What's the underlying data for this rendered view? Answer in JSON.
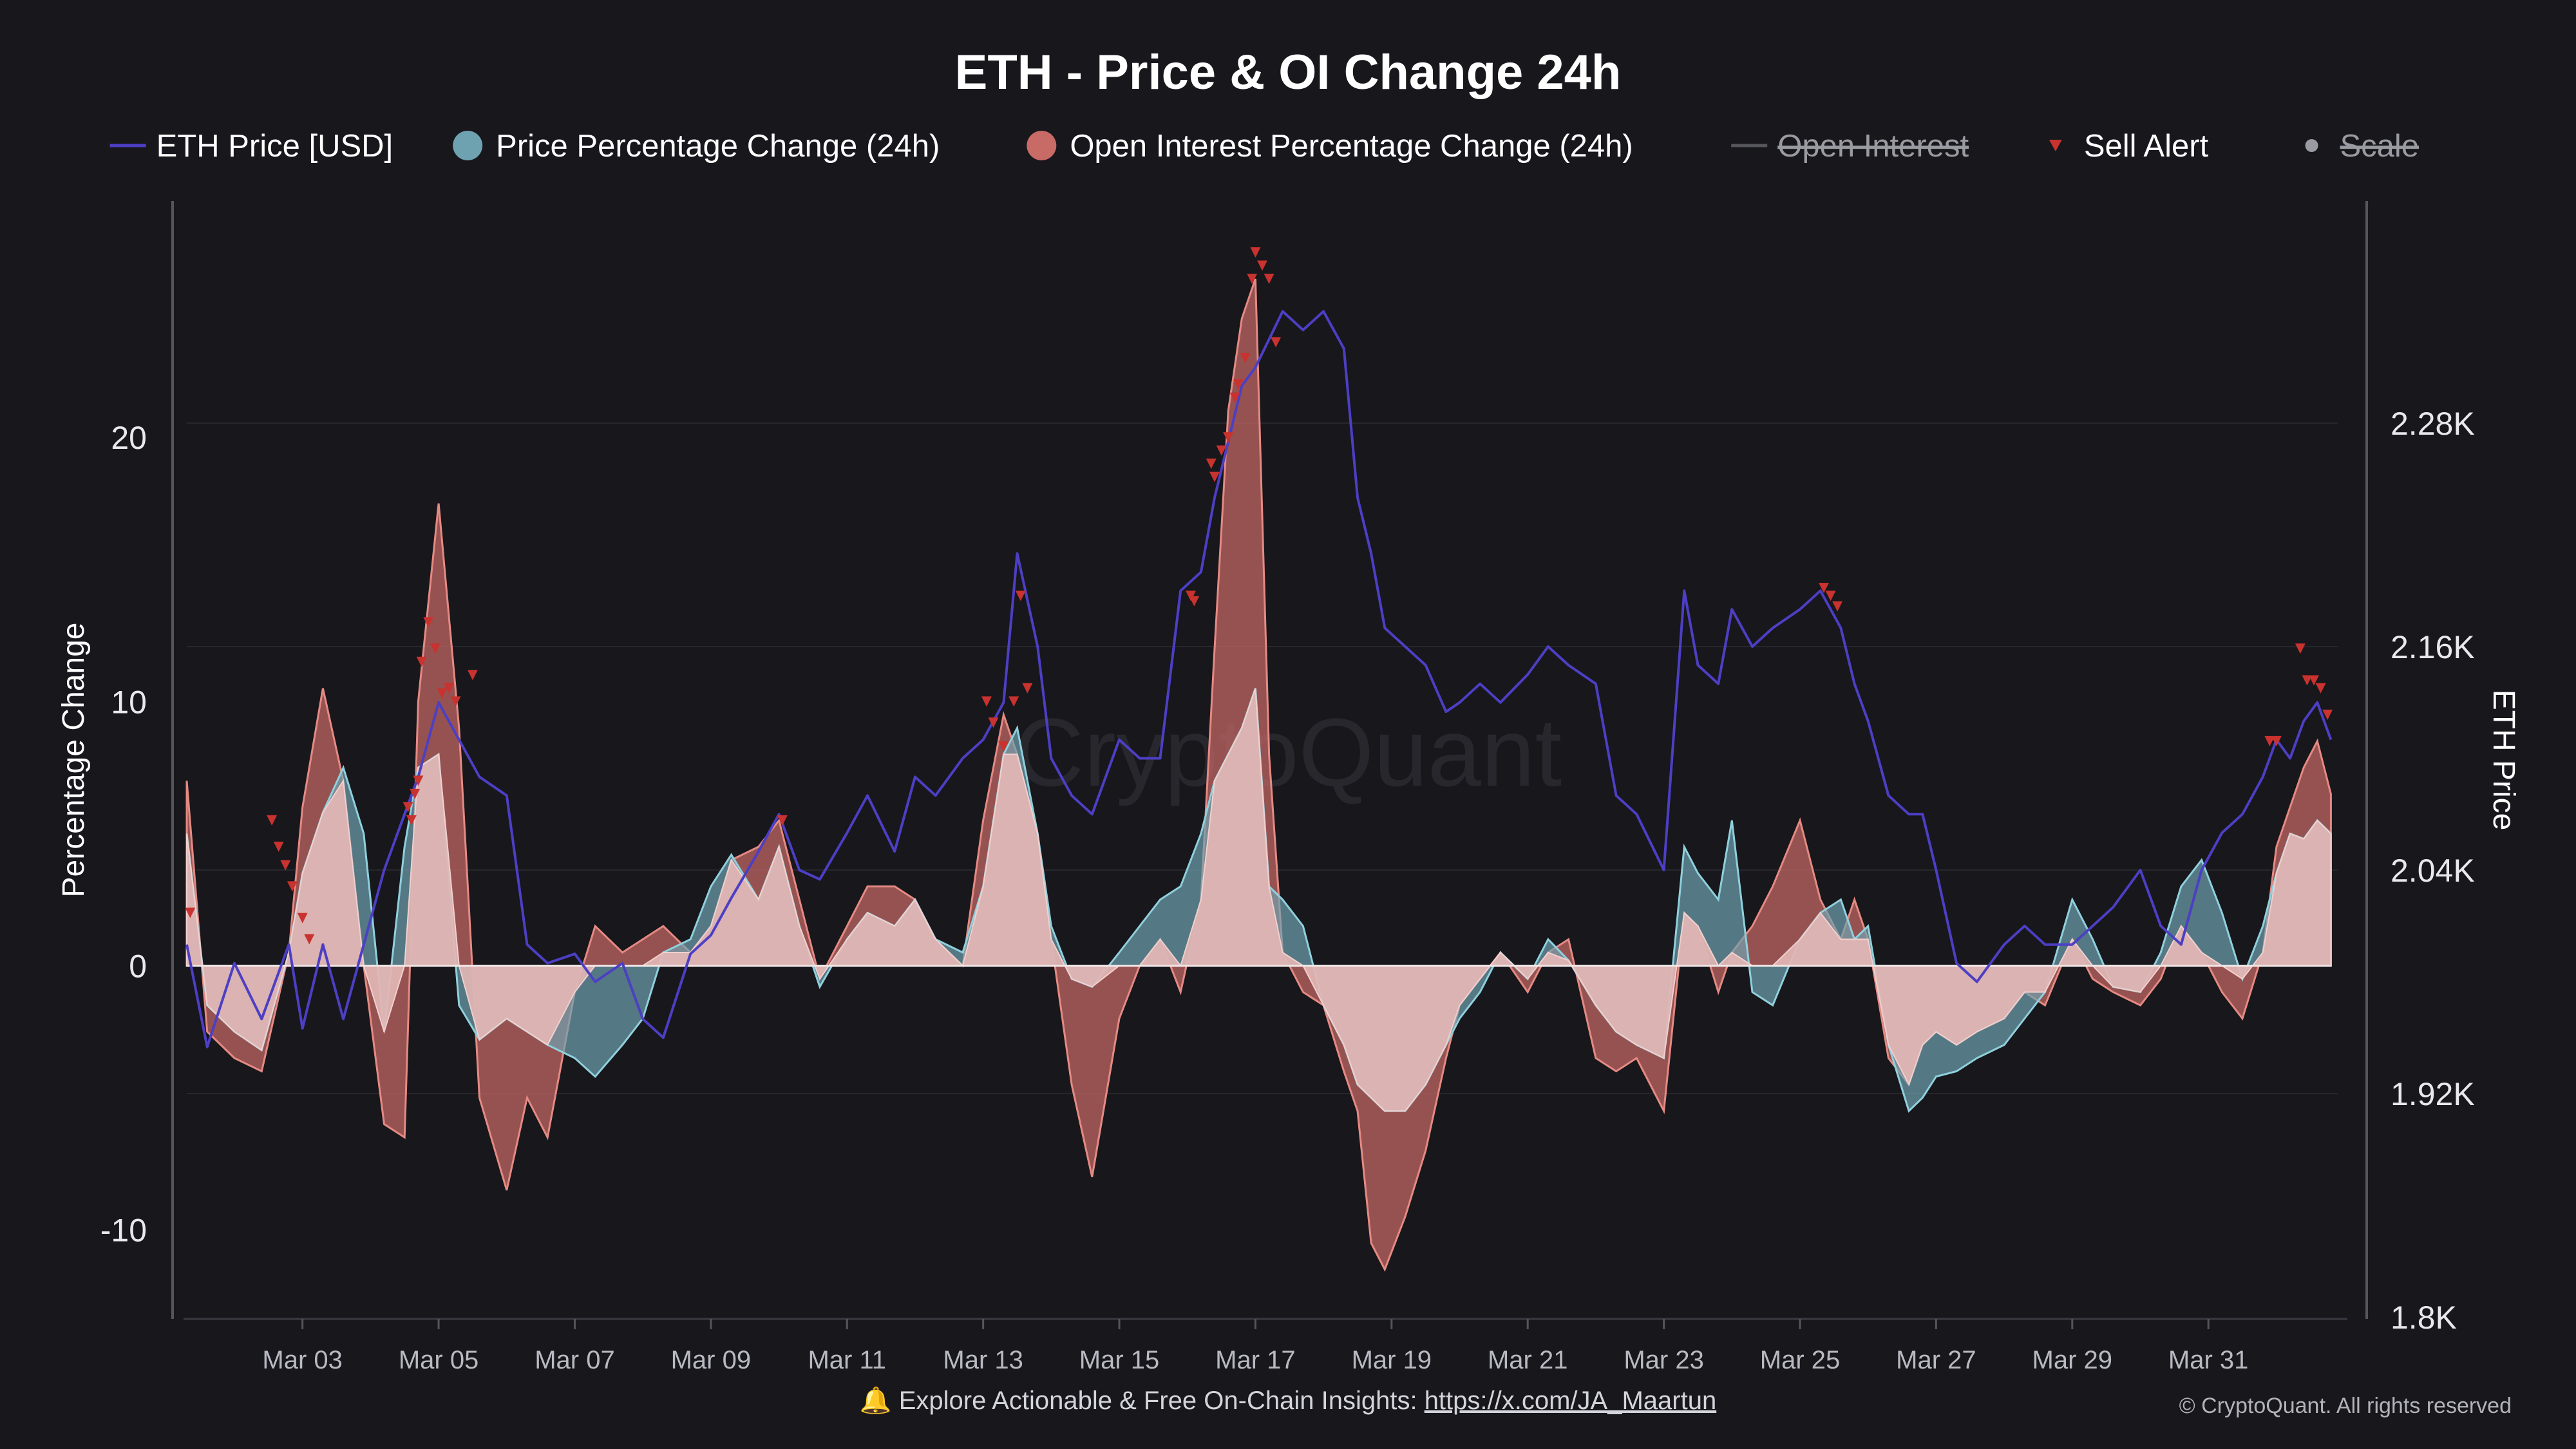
{
  "chart_data": {
    "type": "area",
    "title": "ETH - Price & OI Change 24h",
    "ylabel_left": "Percentage Change",
    "ylabel_right": "ETH Price",
    "ylim_left": [
      -13.3,
      29
    ],
    "ylim_right": [
      1800,
      2400
    ],
    "left_ticks": [
      {
        "value": 20,
        "label": "20"
      },
      {
        "value": 10,
        "label": "10"
      },
      {
        "value": 0,
        "label": "0"
      },
      {
        "value": -10,
        "label": "-10"
      }
    ],
    "right_ticks": [
      {
        "value": 2280,
        "label": "2.28K"
      },
      {
        "value": 2160,
        "label": "2.16K"
      },
      {
        "value": 2040,
        "label": "2.04K"
      },
      {
        "value": 1920,
        "label": "1.92K"
      },
      {
        "value": 1800,
        "label": "1.8K"
      }
    ],
    "x_range": [
      1.3,
      32.9
    ],
    "x_ticks": [
      {
        "value": 3,
        "label": "Mar 03"
      },
      {
        "value": 5,
        "label": "Mar 05"
      },
      {
        "value": 7,
        "label": "Mar 07"
      },
      {
        "value": 9,
        "label": "Mar 09"
      },
      {
        "value": 11,
        "label": "Mar 11"
      },
      {
        "value": 13,
        "label": "Mar 13"
      },
      {
        "value": 15,
        "label": "Mar 15"
      },
      {
        "value": 17,
        "label": "Mar 17"
      },
      {
        "value": 19,
        "label": "Mar 19"
      },
      {
        "value": 21,
        "label": "Mar 21"
      },
      {
        "value": 23,
        "label": "Mar 23"
      },
      {
        "value": 25,
        "label": "Mar 25"
      },
      {
        "value": 27,
        "label": "Mar 27"
      },
      {
        "value": 29,
        "label": "Mar 29"
      },
      {
        "value": 31,
        "label": "Mar 31"
      }
    ],
    "grid": true,
    "legend_position": "top",
    "legend": [
      {
        "key": "price",
        "label": "ETH Price [USD]",
        "symbol": "line",
        "color": "#4d3fc4",
        "disabled": false
      },
      {
        "key": "pct_price",
        "label": "Price Percentage Change (24h)",
        "symbol": "circle",
        "color": "#6fa2b1",
        "disabled": false
      },
      {
        "key": "pct_oi",
        "label": "Open Interest Percentage Change (24h)",
        "symbol": "circle",
        "color": "#c86a66",
        "disabled": false
      },
      {
        "key": "oi",
        "label": "Open Interest",
        "symbol": "line",
        "color": "#8b8b93",
        "disabled": true
      },
      {
        "key": "sell",
        "label": "Sell Alert",
        "symbol": "triangle",
        "color": "#c8322f",
        "disabled": false
      },
      {
        "key": "scale",
        "label": "Scale",
        "symbol": "dot",
        "color": "#9a9aa2",
        "disabled": true
      }
    ],
    "x": [
      1.3,
      1.6,
      2.0,
      2.4,
      2.8,
      3.0,
      3.3,
      3.6,
      3.9,
      4.2,
      4.5,
      4.7,
      5.0,
      5.3,
      5.6,
      6.0,
      6.3,
      6.6,
      7.0,
      7.3,
      7.7,
      8.0,
      8.3,
      8.7,
      9.0,
      9.3,
      9.7,
      10.0,
      10.3,
      10.6,
      11.0,
      11.3,
      11.7,
      12.0,
      12.3,
      12.7,
      13.0,
      13.3,
      13.5,
      13.8,
      14.0,
      14.3,
      14.6,
      15.0,
      15.3,
      15.6,
      15.9,
      16.2,
      16.4,
      16.6,
      16.8,
      17.0,
      17.2,
      17.4,
      17.7,
      18.0,
      18.3,
      18.5,
      18.7,
      18.9,
      19.2,
      19.5,
      19.8,
      20.0,
      20.3,
      20.6,
      21.0,
      21.3,
      21.6,
      22.0,
      22.3,
      22.6,
      23.0,
      23.3,
      23.5,
      23.8,
      24.0,
      24.3,
      24.6,
      25.0,
      25.3,
      25.6,
      25.8,
      26.0,
      26.3,
      26.6,
      26.8,
      27.0,
      27.3,
      27.6,
      28.0,
      28.3,
      28.6,
      29.0,
      29.3,
      29.6,
      30.0,
      30.3,
      30.6,
      30.9,
      31.2,
      31.5,
      31.8,
      32.0,
      32.2,
      32.4,
      32.6,
      32.8
    ],
    "series": [
      {
        "key": "price",
        "name": "ETH Price [USD]",
        "axis": "right",
        "values": [
          2000,
          1945,
          1990,
          1960,
          2000,
          1955,
          2000,
          1960,
          2000,
          2040,
          2070,
          2090,
          2130,
          2110,
          2090,
          2080,
          2000,
          1990,
          1995,
          1980,
          1990,
          1960,
          1950,
          1995,
          2005,
          2025,
          2050,
          2070,
          2040,
          2035,
          2060,
          2080,
          2050,
          2090,
          2080,
          2100,
          2110,
          2130,
          2210,
          2160,
          2100,
          2080,
          2070,
          2110,
          2100,
          2100,
          2190,
          2200,
          2240,
          2270,
          2300,
          2310,
          2325,
          2340,
          2330,
          2340,
          2320,
          2240,
          2210,
          2170,
          2160,
          2150,
          2125,
          2130,
          2140,
          2130,
          2145,
          2160,
          2150,
          2140,
          2080,
          2070,
          2040,
          2190,
          2150,
          2140,
          2180,
          2160,
          2170,
          2180,
          2190,
          2170,
          2140,
          2120,
          2080,
          2070,
          2070,
          2040,
          1990,
          1980,
          2000,
          2010,
          2000,
          2000,
          2010,
          2020,
          2040,
          2010,
          2000,
          2040,
          2060,
          2070,
          2090,
          2110,
          2100,
          2120,
          2130,
          2110
        ]
      },
      {
        "key": "pct_price",
        "name": "Price Percentage Change (24h)",
        "axis": "left",
        "values": [
          5.0,
          -1.5,
          -2.5,
          -3.2,
          0.5,
          3.5,
          5.8,
          7.5,
          5.0,
          -2.5,
          4.5,
          7.5,
          8.0,
          -1.5,
          -2.8,
          -2.0,
          -2.5,
          -3.0,
          -3.5,
          -4.2,
          -3.0,
          -2.0,
          0.5,
          1.0,
          3.0,
          4.2,
          2.5,
          4.5,
          1.5,
          -0.8,
          1.0,
          2.0,
          1.5,
          2.5,
          1.0,
          0.5,
          3.0,
          8.0,
          9.0,
          5.0,
          1.5,
          -0.5,
          -0.8,
          0.5,
          1.5,
          2.5,
          3.0,
          5.0,
          7.0,
          8.0,
          9.0,
          10.5,
          3.0,
          2.5,
          1.5,
          -1.5,
          -3.0,
          -4.5,
          -5.0,
          -5.5,
          -5.5,
          -4.5,
          -3.0,
          -2.0,
          -1.0,
          0.5,
          -0.5,
          1.0,
          0.2,
          -1.5,
          -2.5,
          -3.0,
          -3.5,
          4.5,
          3.5,
          2.5,
          5.5,
          -1.0,
          -1.5,
          1.0,
          2.0,
          2.5,
          1.0,
          1.5,
          -3.0,
          -5.5,
          -5.0,
          -4.2,
          -4.0,
          -3.5,
          -3.0,
          -2.0,
          -1.0,
          2.5,
          1.0,
          -0.8,
          -1.0,
          0.5,
          3.0,
          4.0,
          2.0,
          -0.5,
          1.5,
          3.5,
          5.0,
          4.8,
          5.5,
          5.0
        ]
      },
      {
        "key": "pct_oi",
        "name": "Open Interest Percentage Change (24h)",
        "axis": "left",
        "values": [
          7.0,
          -2.5,
          -3.5,
          -4.0,
          0.5,
          6.0,
          10.5,
          7.0,
          0.0,
          -6.0,
          -6.5,
          10.0,
          17.5,
          9.0,
          -5.0,
          -8.5,
          -5.0,
          -6.5,
          -1.0,
          1.5,
          0.5,
          1.0,
          1.5,
          0.5,
          1.5,
          4.0,
          4.5,
          5.5,
          2.5,
          -0.5,
          1.5,
          3.0,
          3.0,
          2.5,
          1.0,
          0.0,
          5.5,
          9.5,
          8.0,
          5.0,
          1.0,
          -4.5,
          -8.0,
          -2.0,
          0.0,
          1.0,
          -1.0,
          2.5,
          12.0,
          21.0,
          24.5,
          26.0,
          8.0,
          0.5,
          -1.0,
          -1.5,
          -4.0,
          -5.5,
          -10.5,
          -11.5,
          -9.5,
          -7.0,
          -3.5,
          -1.5,
          -0.5,
          0.5,
          -1.0,
          0.5,
          1.0,
          -3.5,
          -4.0,
          -3.5,
          -5.5,
          2.0,
          1.5,
          -1.0,
          0.5,
          1.5,
          3.0,
          5.5,
          2.5,
          1.0,
          2.5,
          1.0,
          -3.5,
          -4.5,
          -3.0,
          -2.5,
          -3.0,
          -2.5,
          -2.0,
          -1.0,
          -1.5,
          1.0,
          -0.5,
          -1.0,
          -1.5,
          -0.5,
          1.5,
          0.5,
          -1.0,
          -2.0,
          0.5,
          4.5,
          6.0,
          7.5,
          8.5,
          6.5
        ]
      }
    ],
    "sell_alerts": [
      {
        "x": 1.35,
        "y": 2.0
      },
      {
        "x": 2.55,
        "y": 5.5
      },
      {
        "x": 2.65,
        "y": 4.5
      },
      {
        "x": 2.75,
        "y": 3.8
      },
      {
        "x": 2.85,
        "y": 3.0
      },
      {
        "x": 3.0,
        "y": 1.8
      },
      {
        "x": 3.1,
        "y": 1.0
      },
      {
        "x": 4.55,
        "y": 6.0
      },
      {
        "x": 4.6,
        "y": 5.5
      },
      {
        "x": 4.65,
        "y": 6.5
      },
      {
        "x": 4.7,
        "y": 7.0
      },
      {
        "x": 4.75,
        "y": 11.5
      },
      {
        "x": 4.85,
        "y": 13.0
      },
      {
        "x": 4.95,
        "y": 12.0
      },
      {
        "x": 5.05,
        "y": 10.3
      },
      {
        "x": 5.15,
        "y": 10.5
      },
      {
        "x": 5.25,
        "y": 10.0
      },
      {
        "x": 5.5,
        "y": 11.0
      },
      {
        "x": 10.05,
        "y": 5.5
      },
      {
        "x": 13.05,
        "y": 10.0
      },
      {
        "x": 13.15,
        "y": 9.2
      },
      {
        "x": 13.3,
        "y": 8.3
      },
      {
        "x": 13.45,
        "y": 10.0
      },
      {
        "x": 13.55,
        "y": 14.0
      },
      {
        "x": 13.65,
        "y": 10.5
      },
      {
        "x": 16.05,
        "y": 14.0
      },
      {
        "x": 16.1,
        "y": 13.8
      },
      {
        "x": 16.35,
        "y": 19.0
      },
      {
        "x": 16.4,
        "y": 18.5
      },
      {
        "x": 16.5,
        "y": 19.5
      },
      {
        "x": 16.6,
        "y": 20.0
      },
      {
        "x": 16.7,
        "y": 21.5
      },
      {
        "x": 16.75,
        "y": 22.0
      },
      {
        "x": 16.85,
        "y": 23.0
      },
      {
        "x": 16.95,
        "y": 26.0
      },
      {
        "x": 17.0,
        "y": 27.0
      },
      {
        "x": 17.1,
        "y": 26.5
      },
      {
        "x": 17.2,
        "y": 26.0
      },
      {
        "x": 17.3,
        "y": 23.6
      },
      {
        "x": 25.35,
        "y": 14.3
      },
      {
        "x": 25.45,
        "y": 14.0
      },
      {
        "x": 25.55,
        "y": 13.6
      },
      {
        "x": 31.9,
        "y": 8.5
      },
      {
        "x": 32.0,
        "y": 8.5
      },
      {
        "x": 32.35,
        "y": 12.0
      },
      {
        "x": 32.45,
        "y": 10.8
      },
      {
        "x": 32.55,
        "y": 10.8
      },
      {
        "x": 32.65,
        "y": 10.5
      },
      {
        "x": 32.75,
        "y": 9.5
      }
    ],
    "watermark": "CryptoQuant",
    "footer_text": "🔔 Explore Actionable & Free On-Chain Insights: ",
    "footer_link": "https://x.com/JA_Maartun",
    "copyright": "© CryptoQuant. All rights reserved"
  }
}
